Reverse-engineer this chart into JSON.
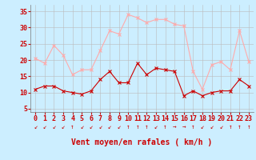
{
  "hours": [
    0,
    1,
    2,
    3,
    4,
    5,
    6,
    7,
    8,
    9,
    10,
    11,
    12,
    13,
    14,
    15,
    16,
    17,
    18,
    19,
    20,
    21,
    22,
    23
  ],
  "wind_avg": [
    11,
    12,
    12,
    10.5,
    10,
    9.5,
    10.5,
    14,
    16.5,
    13,
    13,
    19,
    15.5,
    17.5,
    17,
    16.5,
    9,
    10.5,
    9,
    10,
    10.5,
    10.5,
    14,
    12
  ],
  "wind_gust": [
    20.5,
    19,
    24.5,
    21.5,
    15.5,
    17,
    17,
    23,
    29,
    28,
    34,
    33,
    31.5,
    32.5,
    32.5,
    31,
    30.5,
    16.5,
    11,
    18.5,
    19.5,
    17,
    29,
    19.5
  ],
  "color_avg": "#cc0000",
  "color_gust": "#ffaaaa",
  "bg_color": "#cceeff",
  "grid_color": "#bbbbbb",
  "xlabel": "Vent moyen/en rafales ( km/h )",
  "ylabel_ticks": [
    5,
    10,
    15,
    20,
    25,
    30,
    35
  ],
  "ylim": [
    4,
    37
  ],
  "xlim": [
    -0.5,
    23.5
  ],
  "label_fontsize": 7,
  "tick_fontsize": 6,
  "directions": [
    "↙",
    "↙",
    "↙",
    "↙",
    "↑",
    "↙",
    "↙",
    "↙",
    "↙",
    "↙",
    "↑",
    "↑",
    "↑",
    "↙",
    "↑",
    "→",
    "→",
    "↑",
    "↙",
    "↙",
    "↙",
    "↑",
    "↑",
    "↑"
  ]
}
